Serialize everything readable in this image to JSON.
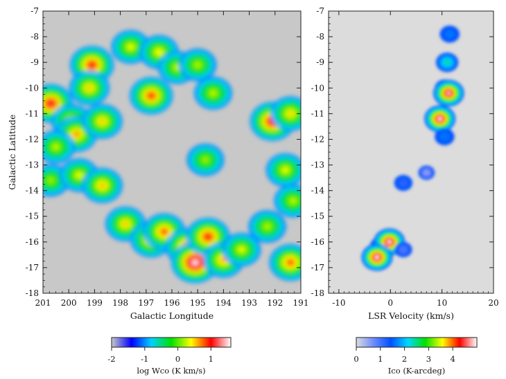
{
  "chart_data": [
    {
      "type": "heatmap",
      "panel": "left",
      "xlabel": "Galactic Longitude",
      "ylabel": "Galactic Latitude",
      "xlim": [
        201,
        191
      ],
      "ylim": [
        -18,
        -7
      ],
      "x_ticks": [
        "201",
        "200",
        "199",
        "198",
        "197",
        "196",
        "195",
        "194",
        "193",
        "192",
        "191"
      ],
      "y_ticks": [
        "-7",
        "-8",
        "-9",
        "-10",
        "-11",
        "-12",
        "-13",
        "-14",
        "-15",
        "-16",
        "-17",
        "-18"
      ],
      "background_color": "#c8c8c8",
      "colorbar": {
        "label": "log Wco (K km/s)",
        "range": [
          -2,
          1.6
        ],
        "ticks": [
          "-2",
          "-1",
          "0",
          "1"
        ],
        "colors": [
          "#c8c8c8",
          "#0000ff",
          "#00d0ff",
          "#00e000",
          "#ffff00",
          "#ff0000",
          "#ffffff"
        ]
      },
      "emission_peaks": [
        {
          "l": 200.7,
          "b": -10.6,
          "level": 1.15
        },
        {
          "l": 199.9,
          "b": -11.3,
          "level": 0.5
        },
        {
          "l": 199.7,
          "b": -11.8,
          "level": 0.7
        },
        {
          "l": 199.1,
          "b": -9.1,
          "level": 1.05
        },
        {
          "l": 199.2,
          "b": -10.0,
          "level": 0.55
        },
        {
          "l": 198.7,
          "b": -11.3,
          "level": 0.55
        },
        {
          "l": 197.6,
          "b": -8.4,
          "level": 0.35
        },
        {
          "l": 196.8,
          "b": -10.3,
          "level": 0.95
        },
        {
          "l": 196.5,
          "b": -8.6,
          "level": 0.4
        },
        {
          "l": 195.8,
          "b": -9.2,
          "level": 0.25
        },
        {
          "l": 195.0,
          "b": -9.1,
          "level": 0.2
        },
        {
          "l": 194.4,
          "b": -10.2,
          "level": 0.25
        },
        {
          "l": 200.5,
          "b": -12.3,
          "level": 0.25
        },
        {
          "l": 200.7,
          "b": -13.6,
          "level": 0.15
        },
        {
          "l": 199.6,
          "b": -13.4,
          "level": 0.35
        },
        {
          "l": 198.7,
          "b": -13.8,
          "level": 0.6
        },
        {
          "l": 194.7,
          "b": -12.8,
          "level": 0.15
        },
        {
          "l": 192.1,
          "b": -11.3,
          "level": 1.2
        },
        {
          "l": 191.4,
          "b": -11.0,
          "level": 0.5
        },
        {
          "l": 191.6,
          "b": -13.2,
          "level": 0.35
        },
        {
          "l": 191.3,
          "b": -14.4,
          "level": 0.25
        },
        {
          "l": 197.8,
          "b": -15.3,
          "level": 0.55
        },
        {
          "l": 196.8,
          "b": -15.9,
          "level": 0.75
        },
        {
          "l": 196.3,
          "b": -15.6,
          "level": 0.85
        },
        {
          "l": 195.4,
          "b": -16.2,
          "level": 1.05
        },
        {
          "l": 195.1,
          "b": -16.8,
          "level": 1.6
        },
        {
          "l": 194.6,
          "b": -15.8,
          "level": 1.05
        },
        {
          "l": 194.0,
          "b": -16.7,
          "level": 0.65
        },
        {
          "l": 193.3,
          "b": -16.3,
          "level": 0.35
        },
        {
          "l": 191.4,
          "b": -16.8,
          "level": 0.85
        },
        {
          "l": 192.3,
          "b": -15.4,
          "level": 0.2
        }
      ]
    },
    {
      "type": "heatmap",
      "panel": "right",
      "xlabel": "LSR Velocity (km/s)",
      "ylabel": "",
      "xlim": [
        -12,
        20
      ],
      "ylim": [
        -18,
        -7
      ],
      "x_ticks": [
        "-10",
        "0",
        "10",
        "20"
      ],
      "y_ticks": [
        "-7",
        "-8",
        "-9",
        "-10",
        "-11",
        "-12",
        "-13",
        "-14",
        "-15",
        "-16",
        "-17",
        "-18"
      ],
      "background_color": "#dcdcdc",
      "colorbar": {
        "label": "Ico (K-arcdeg)",
        "range": [
          0,
          5
        ],
        "ticks": [
          "0",
          "1",
          "2",
          "3",
          "4"
        ],
        "colors": [
          "#dcdcdc",
          "#6e8cff",
          "#0050ff",
          "#00d8ff",
          "#00e000",
          "#ffff00",
          "#ff0000",
          "#ffffff"
        ]
      },
      "emission_peaks": [
        {
          "v": 11.5,
          "b": -7.9,
          "level": 1.6
        },
        {
          "v": 11.0,
          "b": -9.0,
          "level": 2.4
        },
        {
          "v": 10.5,
          "b": -10.0,
          "level": 1.5
        },
        {
          "v": 11.3,
          "b": -10.2,
          "level": 4.9
        },
        {
          "v": 9.6,
          "b": -11.2,
          "level": 5.0
        },
        {
          "v": 10.5,
          "b": -11.9,
          "level": 1.6
        },
        {
          "v": 7.0,
          "b": -13.3,
          "level": 0.6
        },
        {
          "v": 2.5,
          "b": -13.7,
          "level": 1.2
        },
        {
          "v": -1.5,
          "b": -16.2,
          "level": 3.4
        },
        {
          "v": -0.2,
          "b": -16.0,
          "level": 5.0
        },
        {
          "v": -2.6,
          "b": -16.6,
          "level": 5.0
        },
        {
          "v": 2.5,
          "b": -16.3,
          "level": 1.0
        }
      ]
    }
  ]
}
